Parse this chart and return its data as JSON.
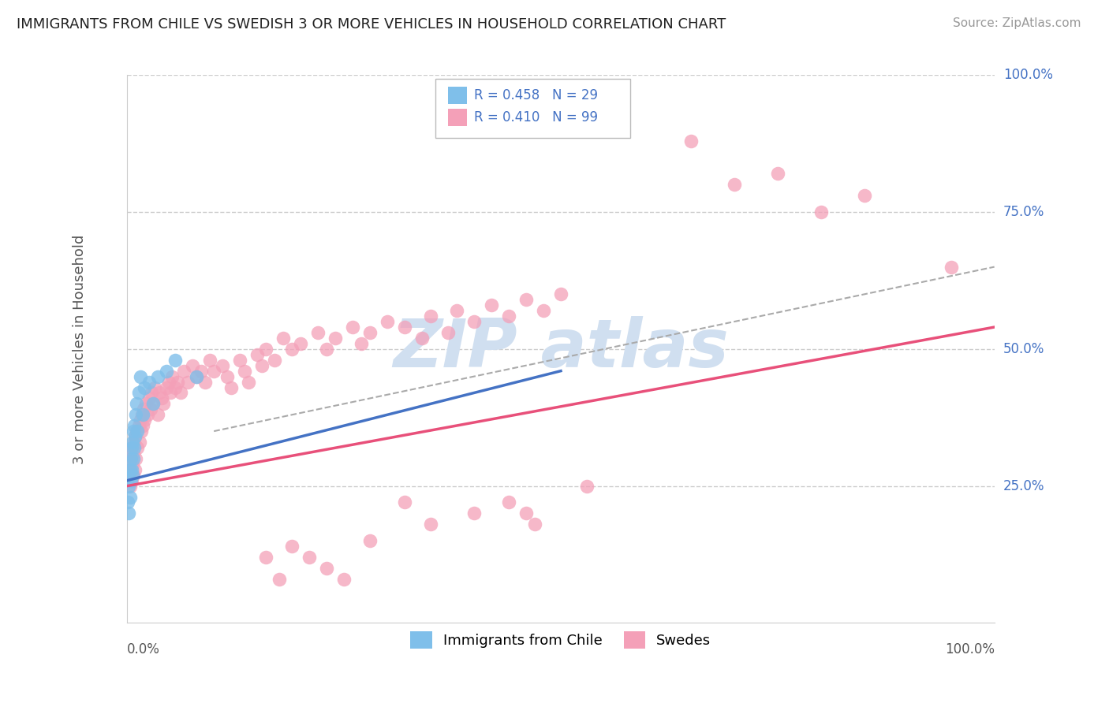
{
  "title": "IMMIGRANTS FROM CHILE VS SWEDISH 3 OR MORE VEHICLES IN HOUSEHOLD CORRELATION CHART",
  "source": "Source: ZipAtlas.com",
  "ylabel": "3 or more Vehicles in Household",
  "chile_color": "#7fbfea",
  "swede_color": "#f4a0b8",
  "chile_line_color": "#4472c4",
  "swede_line_color": "#e8507a",
  "dash_line_color": "#aaaaaa",
  "watermark_color": "#d0dff0",
  "watermark_text": "ZIPatlas",
  "legend_text_color": "#4472c4",
  "right_label_color": "#4472c4",
  "grid_color": "#cccccc",
  "axis_color": "#cccccc",
  "title_color": "#222222",
  "source_color": "#999999",
  "xlabel_color": "#555555",
  "ylabel_color": "#555555",
  "chile_R": 0.458,
  "chile_N": 29,
  "swede_R": 0.41,
  "swede_N": 99,
  "xlim": [
    0,
    1
  ],
  "ylim": [
    0,
    1
  ],
  "ytick_positions": [
    0.25,
    0.5,
    0.75,
    1.0
  ],
  "ytick_labels": [
    "25.0%",
    "50.0%",
    "75.0%",
    "100.0%"
  ],
  "swede_x": [
    0.002,
    0.003,
    0.003,
    0.004,
    0.005,
    0.005,
    0.006,
    0.007,
    0.007,
    0.008,
    0.009,
    0.009,
    0.01,
    0.011,
    0.012,
    0.013,
    0.014,
    0.015,
    0.016,
    0.017,
    0.018,
    0.019,
    0.02,
    0.022,
    0.023,
    0.025,
    0.027,
    0.028,
    0.03,
    0.032,
    0.035,
    0.037,
    0.04,
    0.042,
    0.045,
    0.048,
    0.05,
    0.052,
    0.055,
    0.058,
    0.062,
    0.065,
    0.07,
    0.075,
    0.08,
    0.085,
    0.09,
    0.095,
    0.1,
    0.11,
    0.115,
    0.12,
    0.13,
    0.135,
    0.14,
    0.15,
    0.155,
    0.16,
    0.17,
    0.18,
    0.19,
    0.2,
    0.22,
    0.23,
    0.24,
    0.26,
    0.27,
    0.28,
    0.3,
    0.32,
    0.34,
    0.35,
    0.37,
    0.38,
    0.4,
    0.42,
    0.44,
    0.46,
    0.48,
    0.5,
    0.4,
    0.35,
    0.32,
    0.28,
    0.25,
    0.23,
    0.21,
    0.19,
    0.175,
    0.16,
    0.44,
    0.46,
    0.47,
    0.53,
    0.65,
    0.7,
    0.75,
    0.8,
    0.85,
    0.95
  ],
  "swede_y": [
    0.27,
    0.25,
    0.28,
    0.3,
    0.26,
    0.32,
    0.29,
    0.31,
    0.27,
    0.33,
    0.28,
    0.34,
    0.3,
    0.35,
    0.32,
    0.36,
    0.33,
    0.37,
    0.35,
    0.38,
    0.36,
    0.39,
    0.37,
    0.4,
    0.38,
    0.41,
    0.39,
    0.42,
    0.4,
    0.43,
    0.38,
    0.42,
    0.41,
    0.4,
    0.43,
    0.44,
    0.42,
    0.45,
    0.43,
    0.44,
    0.42,
    0.46,
    0.44,
    0.47,
    0.45,
    0.46,
    0.44,
    0.48,
    0.46,
    0.47,
    0.45,
    0.43,
    0.48,
    0.46,
    0.44,
    0.49,
    0.47,
    0.5,
    0.48,
    0.52,
    0.5,
    0.51,
    0.53,
    0.5,
    0.52,
    0.54,
    0.51,
    0.53,
    0.55,
    0.54,
    0.52,
    0.56,
    0.53,
    0.57,
    0.55,
    0.58,
    0.56,
    0.59,
    0.57,
    0.6,
    0.2,
    0.18,
    0.22,
    0.15,
    0.08,
    0.1,
    0.12,
    0.14,
    0.08,
    0.12,
    0.22,
    0.2,
    0.18,
    0.25,
    0.88,
    0.8,
    0.82,
    0.75,
    0.78,
    0.65
  ],
  "chile_x": [
    0.001,
    0.002,
    0.002,
    0.003,
    0.003,
    0.004,
    0.004,
    0.005,
    0.005,
    0.006,
    0.006,
    0.007,
    0.007,
    0.008,
    0.008,
    0.009,
    0.01,
    0.011,
    0.012,
    0.013,
    0.015,
    0.018,
    0.02,
    0.025,
    0.03,
    0.035,
    0.045,
    0.055,
    0.08
  ],
  "chile_y": [
    0.22,
    0.2,
    0.25,
    0.23,
    0.28,
    0.26,
    0.3,
    0.28,
    0.32,
    0.27,
    0.33,
    0.3,
    0.35,
    0.32,
    0.36,
    0.34,
    0.38,
    0.4,
    0.35,
    0.42,
    0.45,
    0.38,
    0.43,
    0.44,
    0.4,
    0.45,
    0.46,
    0.48,
    0.45
  ],
  "swede_line": {
    "x0": 0.0,
    "y0": 0.25,
    "x1": 1.0,
    "y1": 0.54
  },
  "chile_line": {
    "x0": 0.0,
    "y0": 0.26,
    "x1": 0.5,
    "y1": 0.46
  },
  "dash_line": {
    "x0": 0.1,
    "y0": 0.35,
    "x1": 1.0,
    "y1": 0.65
  }
}
